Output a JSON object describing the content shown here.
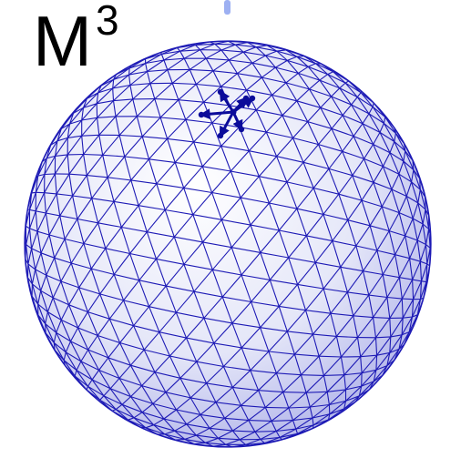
{
  "title": {
    "base": "M",
    "superscript": "3"
  },
  "colors": {
    "mesh_edge": "#1d1ab5",
    "sphere_light": "#ffffff",
    "sphere_mid": "#e4e6f8",
    "sphere_dark": "#a5a8e6",
    "highlight_star": "#0b0b9a",
    "top_stub": "#9db0f2",
    "background": "#ffffff"
  },
  "figure": {
    "object": "geodesic-sphere-mesh",
    "highlighted_vertex": "star-of-vertex-with-arrows"
  }
}
